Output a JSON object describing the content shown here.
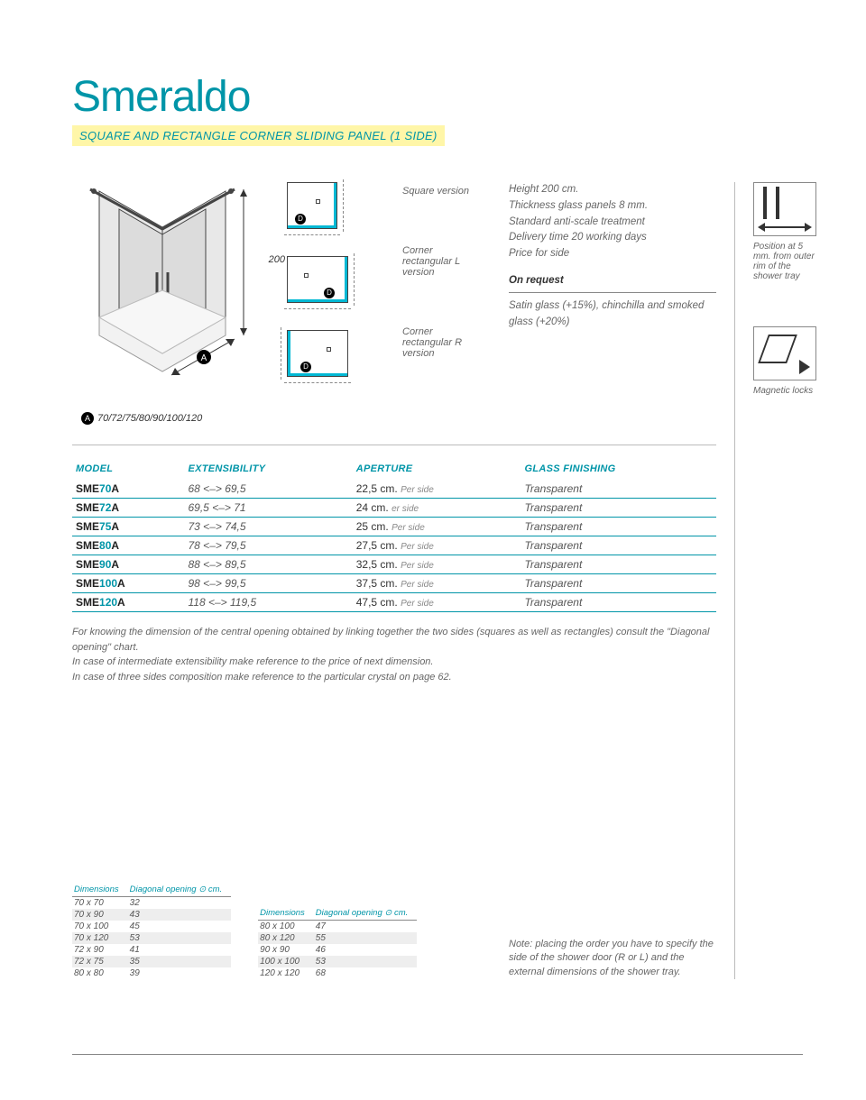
{
  "title": "Smeraldo",
  "subtitle": "SQUARE AND RECTANGLE CORNER SLIDING PANEL (1 SIDE)",
  "colors": {
    "accent": "#0095a8",
    "highlight": "#fff6a8",
    "edge": "#00b8d4",
    "text_muted": "#666"
  },
  "diagram": {
    "height_label": "200",
    "a_values": "70/72/75/80/90/100/120",
    "badge_A": "A",
    "badge_D": "D",
    "thumbs": [
      {
        "label": "Square version"
      },
      {
        "label": "Corner rectangular L version"
      },
      {
        "label": "Corner rectangular R version"
      }
    ]
  },
  "specs": [
    "Height 200 cm.",
    "Thickness glass panels 8 mm.",
    "Standard anti-scale treatment",
    "Delivery time 20 working days",
    "Price for side"
  ],
  "on_request_label": "On request",
  "on_request_text": "Satin glass (+15%), chinchilla and smoked glass (+20%)",
  "side_features": [
    {
      "caption": "Position at 5 mm. from outer rim of the shower tray"
    },
    {
      "caption": "Magnetic locks"
    }
  ],
  "models_table": {
    "headers": [
      "MODEL",
      "EXTENSIBILITY",
      "APERTURE",
      "GLASS FINISHING"
    ],
    "per_side": "Per side",
    "rows": [
      {
        "prefix": "SME",
        "num": "70",
        "suffix": "A",
        "ext": "68 <–> 69,5",
        "ap": "22,5 cm.",
        "finish": "Transparent"
      },
      {
        "prefix": "SME",
        "num": "72",
        "suffix": "A",
        "ext": "69,5 <–> 71",
        "ap": "24 cm.",
        "ap_sub": "er side",
        "finish": "Transparent"
      },
      {
        "prefix": "SME",
        "num": "75",
        "suffix": "A",
        "ext": "73 <–> 74,5",
        "ap": "25 cm.",
        "finish": "Transparent"
      },
      {
        "prefix": "SME",
        "num": "80",
        "suffix": "A",
        "ext": "78 <–> 79,5",
        "ap": "27,5 cm.",
        "finish": "Transparent"
      },
      {
        "prefix": "SME",
        "num": "90",
        "suffix": "A",
        "ext": "88 <–> 89,5",
        "ap": "32,5 cm.",
        "finish": "Transparent"
      },
      {
        "prefix": "SME",
        "num": "100",
        "suffix": "A",
        "ext": "98 <–> 99,5",
        "ap": "37,5 cm.",
        "finish": "Transparent"
      },
      {
        "prefix": "SME",
        "num": "120",
        "suffix": "A",
        "ext": "118 <–> 119,5",
        "ap": "47,5 cm.",
        "finish": "Transparent"
      }
    ]
  },
  "footnotes": [
    "For knowing the dimension of the central opening obtained by linking together the two sides (squares as well as rectangles) consult the \"Diagonal opening\" chart.",
    "In case of intermediate extensibility make reference to the price of next dimension.",
    "In case of three sides composition make reference to the particular crystal on page 62."
  ],
  "diag_tables": {
    "headers": [
      "Dimensions",
      "Diagonal opening ⊙ cm."
    ],
    "left": [
      [
        "70 x 70",
        "32"
      ],
      [
        "70 x 90",
        "43"
      ],
      [
        "70 x 100",
        "45"
      ],
      [
        "70 x 120",
        "53"
      ],
      [
        "72 x 90",
        "41"
      ],
      [
        "72 x 75",
        "35"
      ],
      [
        "80 x 80",
        "39"
      ]
    ],
    "right": [
      [
        "80 x 100",
        "47"
      ],
      [
        "80 x 120",
        "55"
      ],
      [
        "90 x 90",
        "46"
      ],
      [
        "100 x 100",
        "53"
      ],
      [
        "120 x 120",
        "68"
      ]
    ]
  },
  "order_note": "Note: placing the order you have to specify the side of the shower door (R or L) and the external dimensions of the shower tray."
}
